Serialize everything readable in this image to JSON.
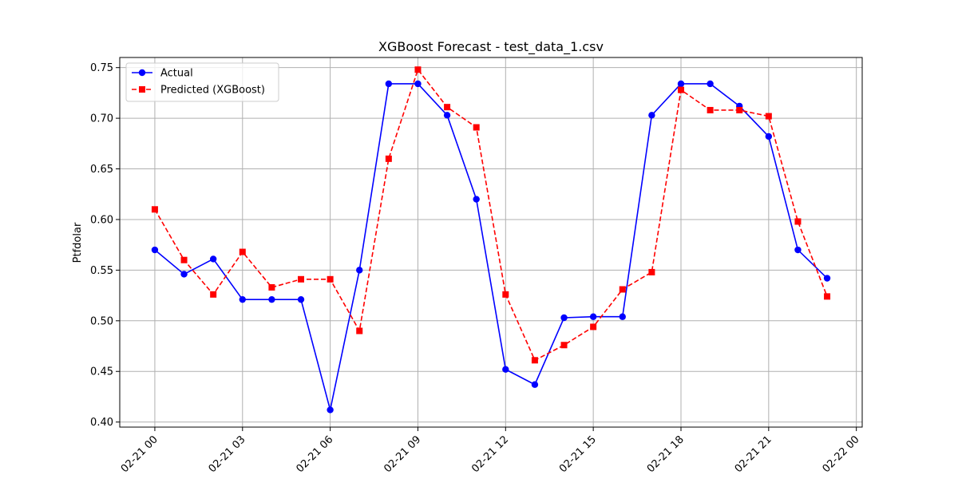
{
  "chart_data": {
    "type": "line",
    "title": "XGBoost Forecast - test_data_1.csv",
    "xlabel": "",
    "ylabel": "Ptfdolar",
    "x_hours": [
      0,
      1,
      2,
      3,
      4,
      5,
      6,
      7,
      8,
      9,
      10,
      11,
      12,
      13,
      14,
      15,
      16,
      17,
      18,
      19,
      20,
      21,
      22,
      23
    ],
    "xlim_hours": [
      -1.2,
      24.2
    ],
    "ylim": [
      0.395,
      0.76
    ],
    "x_ticks": [
      {
        "hour": 0,
        "label": "02-21 00"
      },
      {
        "hour": 3,
        "label": "02-21 03"
      },
      {
        "hour": 6,
        "label": "02-21 06"
      },
      {
        "hour": 9,
        "label": "02-21 09"
      },
      {
        "hour": 12,
        "label": "02-21 12"
      },
      {
        "hour": 15,
        "label": "02-21 15"
      },
      {
        "hour": 18,
        "label": "02-21 18"
      },
      {
        "hour": 21,
        "label": "02-21 21"
      },
      {
        "hour": 24,
        "label": "02-22 00"
      }
    ],
    "y_ticks": [
      {
        "value": 0.4,
        "label": "0.40"
      },
      {
        "value": 0.45,
        "label": "0.45"
      },
      {
        "value": 0.5,
        "label": "0.50"
      },
      {
        "value": 0.55,
        "label": "0.55"
      },
      {
        "value": 0.6,
        "label": "0.60"
      },
      {
        "value": 0.65,
        "label": "0.65"
      },
      {
        "value": 0.7,
        "label": "0.70"
      },
      {
        "value": 0.75,
        "label": "0.75"
      }
    ],
    "grid": true,
    "legend_position": "top-left",
    "series": [
      {
        "name": "Actual",
        "color": "#0000ff",
        "linestyle": "solid",
        "marker": "circle",
        "values": [
          0.57,
          0.546,
          0.561,
          0.521,
          0.521,
          0.521,
          0.412,
          0.55,
          0.734,
          0.734,
          0.703,
          0.62,
          0.452,
          0.437,
          0.503,
          0.504,
          0.504,
          0.703,
          0.734,
          0.734,
          0.712,
          0.682,
          0.57,
          0.542
        ]
      },
      {
        "name": "Predicted (XGBoost)",
        "color": "#ff0000",
        "linestyle": "dashed",
        "marker": "square",
        "values": [
          0.61,
          0.56,
          0.526,
          0.568,
          0.533,
          0.541,
          0.541,
          0.49,
          0.66,
          0.748,
          0.711,
          0.691,
          0.526,
          0.461,
          0.476,
          0.494,
          0.531,
          0.548,
          0.728,
          0.708,
          0.708,
          0.702,
          0.598,
          0.524
        ]
      }
    ]
  }
}
